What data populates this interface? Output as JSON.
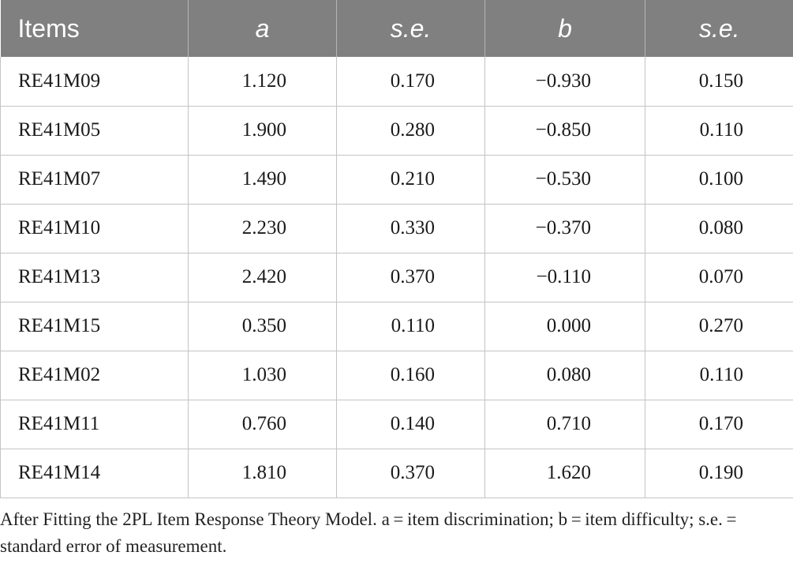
{
  "table": {
    "headers": [
      "Items",
      "a",
      "s.e.",
      "b",
      "s.e."
    ],
    "rows": [
      [
        "RE41M09",
        "1.120",
        "0.170",
        "−0.930",
        "0.150"
      ],
      [
        "RE41M05",
        "1.900",
        "0.280",
        "−0.850",
        "0.110"
      ],
      [
        "RE41M07",
        "1.490",
        "0.210",
        "−0.530",
        "0.100"
      ],
      [
        "RE41M10",
        "2.230",
        "0.330",
        "−0.370",
        "0.080"
      ],
      [
        "RE41M13",
        "2.420",
        "0.370",
        "−0.110",
        "0.070"
      ],
      [
        "RE41M15",
        "0.350",
        "0.110",
        "0.000",
        "0.270"
      ],
      [
        "RE41M02",
        "1.030",
        "0.160",
        "0.080",
        "0.110"
      ],
      [
        "RE41M11",
        "0.760",
        "0.140",
        "0.710",
        "0.170"
      ],
      [
        "RE41M14",
        "1.810",
        "0.370",
        "1.620",
        "0.190"
      ]
    ]
  },
  "footnote": "After Fitting the 2PL Item Response Theory Model. a = item discrimination; b = item difficulty; s.e. = standard error of measurement."
}
